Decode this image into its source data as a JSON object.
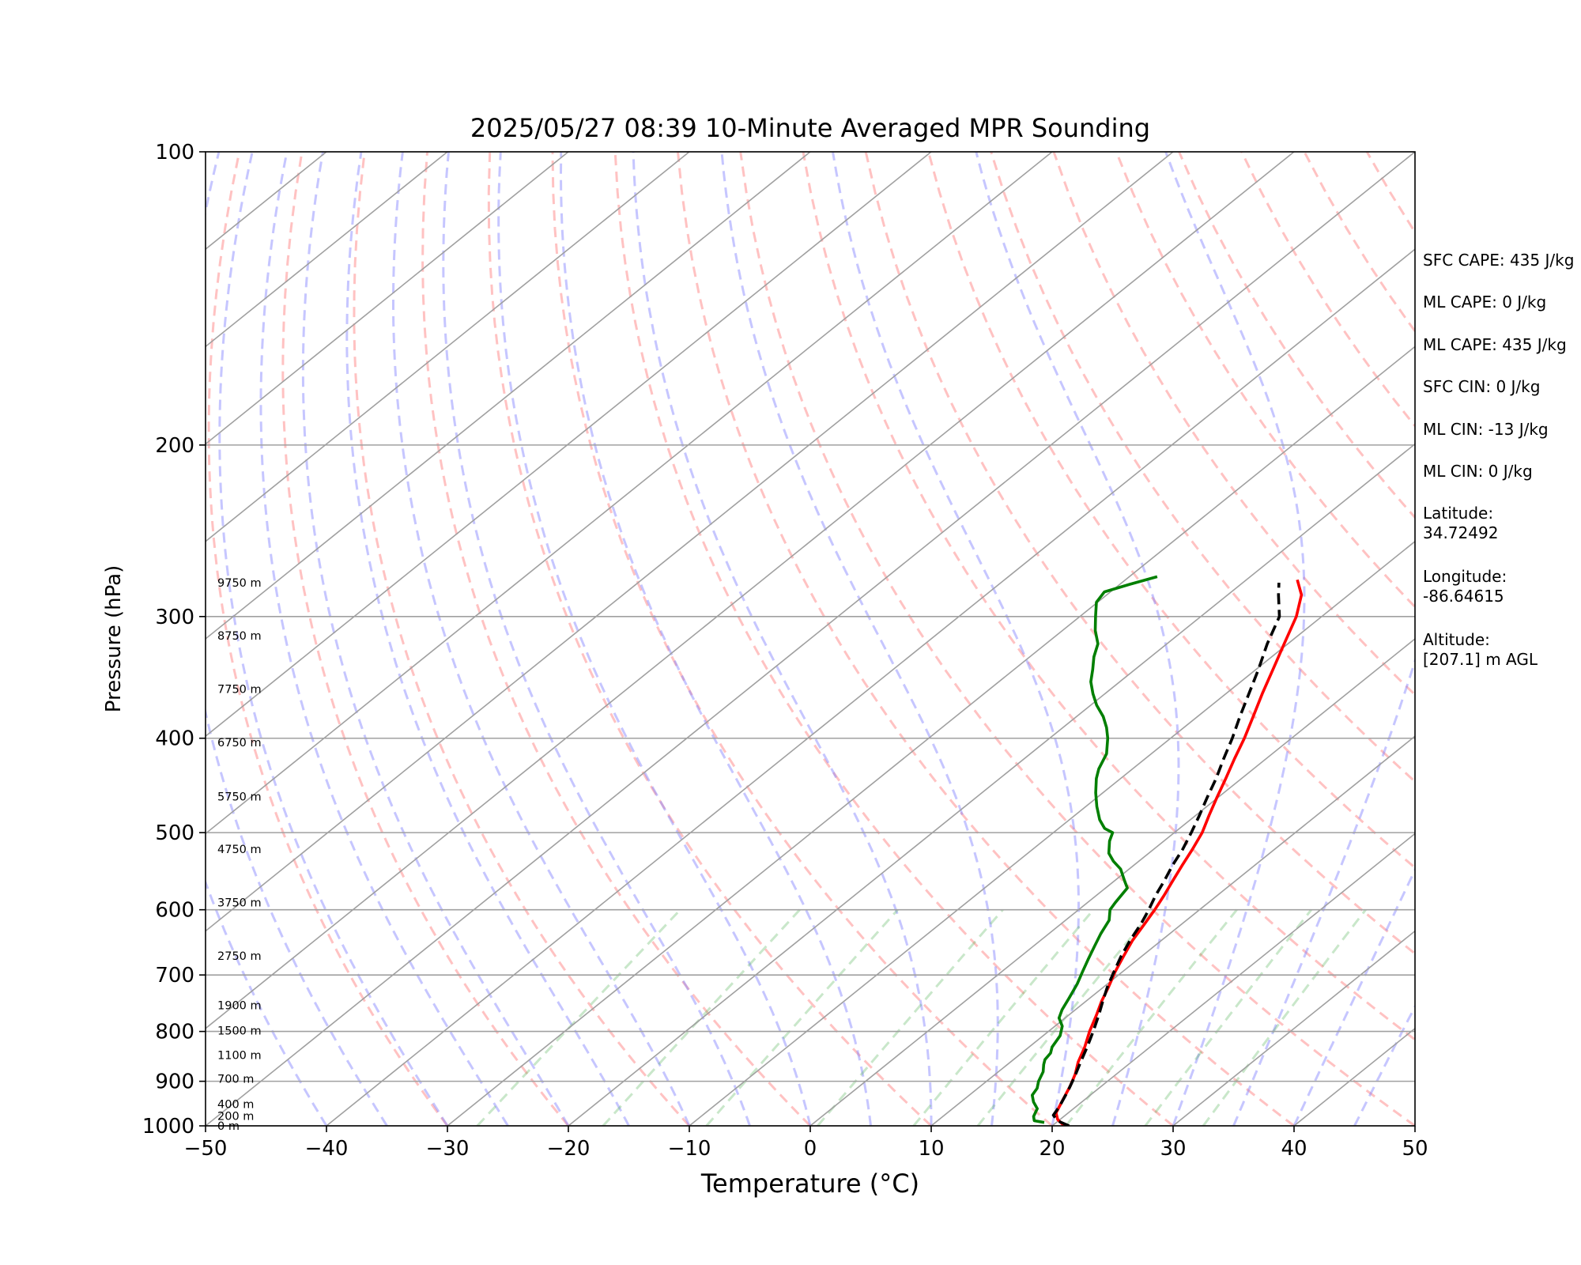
{
  "chart_data": {
    "type": "line",
    "title": "2025/05/27 08:39 10-Minute Averaged MPR Sounding",
    "xlabel": "Temperature (°C)",
    "ylabel": "Pressure (hPa)",
    "xlim": [
      -50,
      50
    ],
    "ylim": [
      1000,
      100
    ],
    "yscale": "log",
    "grid": true,
    "x_ticks": [
      "−50",
      "−40",
      "−30",
      "−20",
      "−10",
      "0",
      "10",
      "20",
      "30",
      "40",
      "50"
    ],
    "x_tick_values": [
      -50,
      -40,
      -30,
      -20,
      -10,
      0,
      10,
      20,
      30,
      40,
      50
    ],
    "y_ticks": [
      "100",
      "200",
      "300",
      "400",
      "500",
      "600",
      "700",
      "800",
      "900",
      "1000"
    ],
    "y_tick_values": [
      100,
      200,
      300,
      400,
      500,
      600,
      700,
      800,
      900,
      1000
    ],
    "height_labels": [
      {
        "text": "9750 m",
        "p": 277
      },
      {
        "text": "8750 m",
        "p": 314
      },
      {
        "text": "7750 m",
        "p": 356
      },
      {
        "text": "6750 m",
        "p": 404
      },
      {
        "text": "5750 m",
        "p": 459
      },
      {
        "text": "4750 m",
        "p": 520
      },
      {
        "text": "3750 m",
        "p": 590
      },
      {
        "text": "2750 m",
        "p": 669
      },
      {
        "text": "1900 m",
        "p": 752
      },
      {
        "text": "1500 m",
        "p": 798
      },
      {
        "text": "1100 m",
        "p": 846
      },
      {
        "text": "700 m",
        "p": 895
      },
      {
        "text": "400 m",
        "p": 950
      },
      {
        "text": "200 m",
        "p": 977
      },
      {
        "text": "0 m",
        "p": 1000
      }
    ],
    "series": [
      {
        "name": "",
        "color": "#ff0000",
        "style": "solid",
        "points": [
          [
            21.0,
            1000
          ],
          [
            19.8,
            985
          ],
          [
            19.0,
            970
          ],
          [
            18.2,
            940
          ],
          [
            17.4,
            910
          ],
          [
            16.6,
            885
          ],
          [
            15.6,
            860
          ],
          [
            14.6,
            830
          ],
          [
            13.4,
            800
          ],
          [
            12.3,
            770
          ],
          [
            11.3,
            745
          ],
          [
            10.4,
            720
          ],
          [
            9.4,
            695
          ],
          [
            8.5,
            670
          ],
          [
            7.6,
            645
          ],
          [
            6.9,
            620
          ],
          [
            6.3,
            600
          ],
          [
            5.6,
            580
          ],
          [
            4.8,
            560
          ],
          [
            4.0,
            540
          ],
          [
            3.2,
            520
          ],
          [
            2.3,
            500
          ],
          [
            1.1,
            480
          ],
          [
            -0.1,
            460
          ],
          [
            -1.3,
            440
          ],
          [
            -2.6,
            420
          ],
          [
            -3.9,
            400
          ],
          [
            -5.4,
            380
          ],
          [
            -7.0,
            360
          ],
          [
            -8.6,
            340
          ],
          [
            -10.3,
            320
          ],
          [
            -12.1,
            300
          ],
          [
            -13.9,
            285
          ],
          [
            -15.8,
            275
          ]
        ]
      },
      {
        "name": "",
        "color": "#007f00",
        "style": "solid",
        "points": [
          [
            19.0,
            992
          ],
          [
            18.0,
            988
          ],
          [
            17.5,
            978
          ],
          [
            17.0,
            960
          ],
          [
            16.0,
            945
          ],
          [
            15.2,
            930
          ],
          [
            14.9,
            915
          ],
          [
            14.3,
            900
          ],
          [
            13.7,
            880
          ],
          [
            13.0,
            865
          ],
          [
            12.6,
            855
          ],
          [
            12.4,
            842
          ],
          [
            11.9,
            830
          ],
          [
            11.4,
            808
          ],
          [
            10.6,
            790
          ],
          [
            9.5,
            775
          ],
          [
            8.9,
            760
          ],
          [
            8.3,
            740
          ],
          [
            7.5,
            715
          ],
          [
            6.7,
            695
          ],
          [
            5.9,
            675
          ],
          [
            5.1,
            655
          ],
          [
            4.3,
            635
          ],
          [
            3.6,
            615
          ],
          [
            2.6,
            600
          ],
          [
            2.3,
            590
          ],
          [
            1.8,
            570
          ],
          [
            0.8,
            560
          ],
          [
            -0.7,
            545
          ],
          [
            -2.1,
            535
          ],
          [
            -3.3,
            525
          ],
          [
            -4.5,
            510
          ],
          [
            -5.1,
            500
          ],
          [
            -6.2,
            495
          ],
          [
            -7.5,
            485
          ],
          [
            -9.1,
            470
          ],
          [
            -10.6,
            455
          ],
          [
            -12.0,
            440
          ],
          [
            -12.8,
            430
          ],
          [
            -13.7,
            415
          ],
          [
            -15.2,
            400
          ],
          [
            -16.4,
            390
          ],
          [
            -17.8,
            380
          ],
          [
            -19.5,
            370
          ],
          [
            -21.0,
            360
          ],
          [
            -22.4,
            350
          ],
          [
            -23.5,
            340
          ],
          [
            -24.7,
            330
          ],
          [
            -25.7,
            320
          ],
          [
            -27.3,
            310
          ],
          [
            -28.7,
            300
          ],
          [
            -30.1,
            290
          ],
          [
            -30.5,
            283
          ],
          [
            -29.2,
            278
          ],
          [
            -27.7,
            273
          ]
        ]
      },
      {
        "name": "",
        "color": "#000000",
        "style": "dashed",
        "points": [
          [
            21.4,
            1000
          ],
          [
            19.9,
            988
          ],
          [
            19.0,
            975
          ],
          [
            18.6,
            955
          ],
          [
            17.7,
            920
          ],
          [
            16.8,
            890
          ],
          [
            15.8,
            860
          ],
          [
            14.8,
            830
          ],
          [
            13.7,
            800
          ],
          [
            12.5,
            770
          ],
          [
            11.4,
            745
          ],
          [
            10.3,
            720
          ],
          [
            9.3,
            695
          ],
          [
            8.3,
            670
          ],
          [
            7.4,
            645
          ],
          [
            6.6,
            620
          ],
          [
            5.8,
            600
          ],
          [
            4.9,
            580
          ],
          [
            4.1,
            560
          ],
          [
            3.2,
            540
          ],
          [
            2.4,
            520
          ],
          [
            1.4,
            500
          ],
          [
            0.3,
            480
          ],
          [
            -0.9,
            460
          ],
          [
            -2.1,
            440
          ],
          [
            -3.5,
            420
          ],
          [
            -4.9,
            400
          ],
          [
            -6.5,
            380
          ],
          [
            -8.1,
            360
          ],
          [
            -9.8,
            340
          ],
          [
            -11.7,
            320
          ],
          [
            -13.5,
            300
          ],
          [
            -15.8,
            285
          ],
          [
            -17.0,
            277
          ]
        ]
      }
    ]
  },
  "sidebar": {
    "sfc_cape": "SFC CAPE: 435 J/kg",
    "ml_cape_1": "ML CAPE: 0 J/kg",
    "ml_cape_2": "ML CAPE: 435 J/kg",
    "sfc_cin": "SFC CIN: 0 J/kg",
    "ml_cin_1": "ML CIN: -13 J/kg",
    "ml_cin_2": "ML CIN: 0 J/kg",
    "latitude": "Latitude:\n34.72492",
    "longitude": "Longitude:\n-86.64615",
    "altitude": "Altitude:\n[207.1] m AGL"
  }
}
